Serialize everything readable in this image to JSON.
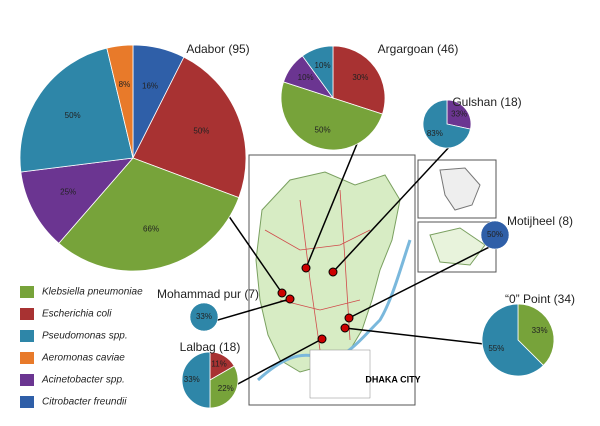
{
  "legend": {
    "items": [
      {
        "name": "Klebsiella pneumoniae",
        "color": "#77a33a"
      },
      {
        "name": "Escherichia coli",
        "color": "#a83232"
      },
      {
        "name": "Pseudomonas spp.",
        "color": "#2e86a8"
      },
      {
        "name": "Aeromonas caviae",
        "color": "#e87a2a"
      },
      {
        "name": "Acinetobacter spp.",
        "color": "#6b3591"
      },
      {
        "name": "Citrobacter freundii",
        "color": "#2f5fa8"
      }
    ]
  },
  "map": {
    "label": "DHAKA CITY"
  },
  "chart_data": [
    {
      "type": "pie",
      "title": "Adabor (95)",
      "values": [
        66,
        50,
        50,
        8,
        25,
        16
      ],
      "value_labels": [
        "66%",
        "50%",
        "50%",
        "8%",
        "25%",
        "16%"
      ]
    },
    {
      "type": "pie",
      "title": "Argargoan (46)",
      "values": [
        50,
        30,
        10,
        null,
        10,
        null
      ],
      "value_labels": [
        "50%",
        "30%",
        "10%",
        null,
        "10%",
        null
      ]
    },
    {
      "type": "pie",
      "title": "Gulshan (18)",
      "values": [
        null,
        null,
        83,
        null,
        33,
        null
      ],
      "value_labels": [
        null,
        null,
        "83%",
        null,
        "33%",
        null
      ]
    },
    {
      "type": "pie",
      "title": "Motijheel (8)",
      "values": [
        null,
        null,
        null,
        null,
        null,
        50
      ],
      "value_labels": [
        null,
        null,
        null,
        null,
        null,
        "50%"
      ]
    },
    {
      "type": "pie",
      "title": "Mohammad pur (7)",
      "values": [
        null,
        null,
        33,
        null,
        null,
        null
      ],
      "value_labels": [
        null,
        null,
        "33%",
        null,
        null,
        null
      ]
    },
    {
      "type": "pie",
      "title": "“0” Point (34)",
      "values": [
        33,
        null,
        55,
        null,
        null,
        null
      ],
      "value_labels": [
        "33%",
        null,
        "55%",
        null,
        null,
        null
      ]
    },
    {
      "type": "pie",
      "title": "Lalbag (18)",
      "values": [
        22,
        11,
        33,
        null,
        null,
        null
      ],
      "value_labels": [
        "22%",
        "11%",
        "33%",
        null,
        null,
        null
      ]
    }
  ]
}
